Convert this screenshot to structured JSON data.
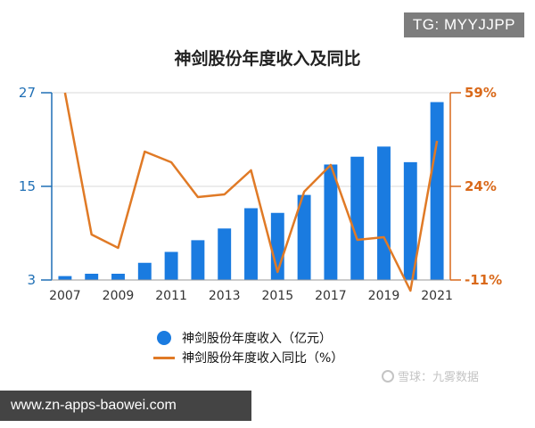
{
  "badge": "TG: MYYJJPP",
  "website": "www.zn-apps-baowei.com",
  "watermark": "雪球：九雾数据",
  "chart_data": {
    "type": "bar",
    "title": "神剑股份年度收入及同比",
    "categories": [
      "2007",
      "2008",
      "2009",
      "2010",
      "2011",
      "2012",
      "2013",
      "2014",
      "2015",
      "2016",
      "2017",
      "2018",
      "2019",
      "2020",
      "2021"
    ],
    "x_tick_labels": [
      "2007",
      "2009",
      "2011",
      "2013",
      "2015",
      "2017",
      "2019",
      "2021"
    ],
    "series": [
      {
        "name": "神剑股份年度收入（亿元）",
        "type": "bar",
        "axis": "left",
        "color": "#1a7be0",
        "values": [
          3.5,
          3.8,
          3.8,
          5.2,
          6.6,
          8.1,
          9.6,
          12.2,
          11.6,
          13.9,
          17.8,
          18.8,
          20.1,
          18.1,
          25.8
        ]
      },
      {
        "name": "神剑股份年度收入同比（%）",
        "type": "line",
        "axis": "right",
        "color": "#e07a26",
        "values": [
          59,
          6,
          1,
          37,
          33,
          20,
          21,
          30,
          -8,
          22,
          32,
          4,
          5,
          -15,
          41
        ]
      }
    ],
    "y_left": {
      "min": 3,
      "max": 27,
      "ticks": [
        3,
        15,
        27
      ],
      "tick_labels": [
        "3",
        "15",
        "27"
      ],
      "color": "#1f6fb5"
    },
    "y_right": {
      "min": -11,
      "max": 59,
      "ticks": [
        -11,
        24,
        59
      ],
      "tick_labels": [
        "-11%",
        "24%",
        "59%"
      ],
      "color": "#d9691a"
    },
    "grid": "horizontal",
    "legend_position": "bottom"
  }
}
